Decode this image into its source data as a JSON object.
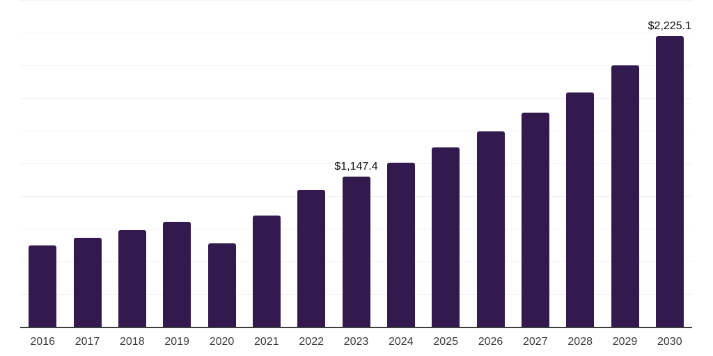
{
  "chart_data": {
    "type": "bar",
    "title": "",
    "xlabel": "",
    "ylabel": "",
    "categories": [
      "2016",
      "2017",
      "2018",
      "2019",
      "2020",
      "2021",
      "2022",
      "2023",
      "2024",
      "2025",
      "2026",
      "2027",
      "2028",
      "2029",
      "2030"
    ],
    "values": [
      620,
      680,
      737,
      806,
      641,
      849,
      1050,
      1147.4,
      1254,
      1371,
      1495,
      1638,
      1792,
      1998,
      2225.1
    ],
    "value_labels": {
      "2023": "$1,147.4",
      "2030": "$2,225.1"
    },
    "ylim": [
      0,
      2500
    ],
    "grid_step": 250,
    "grid": true,
    "legend": false,
    "y_tick_labels_shown": false,
    "bar_color": "#32194e",
    "gridline_color": "#f2f2f2",
    "axis_line_color": "#3d3d3d",
    "value_label_color": "#111111",
    "tick_label_color": "#3a3a3a",
    "background_color": "#ffffff"
  }
}
